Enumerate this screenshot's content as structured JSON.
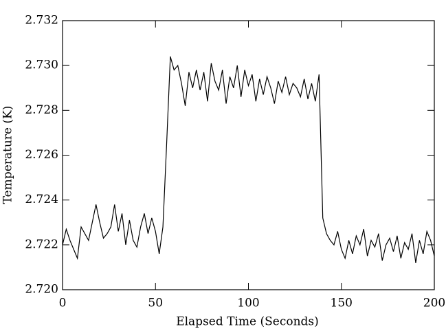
{
  "chart_data": {
    "type": "line",
    "xlabel": "Elapsed Time (Seconds)",
    "ylabel": "Temperature (K)",
    "x": [
      0,
      2,
      4,
      6,
      8,
      10,
      12,
      14,
      16,
      18,
      20,
      22,
      24,
      26,
      28,
      30,
      32,
      34,
      36,
      38,
      40,
      42,
      44,
      46,
      48,
      50,
      52,
      54,
      56,
      58,
      60,
      62,
      64,
      66,
      68,
      70,
      72,
      74,
      76,
      78,
      80,
      82,
      84,
      86,
      88,
      90,
      92,
      94,
      96,
      98,
      100,
      102,
      104,
      106,
      108,
      110,
      112,
      114,
      116,
      118,
      120,
      122,
      124,
      126,
      128,
      130,
      132,
      134,
      136,
      138,
      140,
      142,
      144,
      146,
      148,
      150,
      152,
      154,
      156,
      158,
      160,
      162,
      164,
      166,
      168,
      170,
      172,
      174,
      176,
      178,
      180,
      182,
      184,
      186,
      188,
      190,
      192,
      194,
      196,
      198,
      200
    ],
    "series": [
      {
        "color": "#000000",
        "values": [
          2.722,
          2.7227,
          2.7222,
          2.7218,
          2.7214,
          2.7228,
          2.7225,
          2.7222,
          2.723,
          2.7238,
          2.723,
          2.7223,
          2.7225,
          2.7228,
          2.7238,
          2.7226,
          2.7234,
          2.722,
          2.7231,
          2.7222,
          2.7219,
          2.7228,
          2.7234,
          2.7225,
          2.7232,
          2.7226,
          2.7216,
          2.7228,
          2.7265,
          2.7304,
          2.7298,
          2.73,
          2.7292,
          2.7282,
          2.7297,
          2.729,
          2.7298,
          2.7289,
          2.7297,
          2.7284,
          2.7301,
          2.7293,
          2.7289,
          2.7298,
          2.7283,
          2.7295,
          2.729,
          2.73,
          2.7286,
          2.7298,
          2.7291,
          2.7296,
          2.7284,
          2.7294,
          2.7287,
          2.7295,
          2.729,
          2.7283,
          2.7293,
          2.7288,
          2.7295,
          2.7287,
          2.7292,
          2.729,
          2.7286,
          2.7294,
          2.7285,
          2.7292,
          2.7284,
          2.7296,
          2.7232,
          2.7225,
          2.7222,
          2.722,
          2.7226,
          2.7218,
          2.7214,
          2.7222,
          2.7216,
          2.7224,
          2.722,
          2.7227,
          2.7215,
          2.7222,
          2.7219,
          2.7225,
          2.7213,
          2.722,
          2.7223,
          2.7217,
          2.7224,
          2.7214,
          2.7221,
          2.7218,
          2.7225,
          2.7212,
          2.7222,
          2.7216,
          2.7226,
          2.7222,
          2.7215
        ]
      }
    ],
    "xlim": [
      0,
      200
    ],
    "xticks": [
      0,
      50,
      100,
      150,
      200
    ],
    "ylim": [
      2.72,
      2.732
    ],
    "yticks": [
      {
        "value": 2.72,
        "label": "2.720"
      },
      2.722,
      2.724,
      2.726,
      2.728,
      {
        "value": 2.73,
        "label": "2.730"
      },
      2.732
    ]
  }
}
